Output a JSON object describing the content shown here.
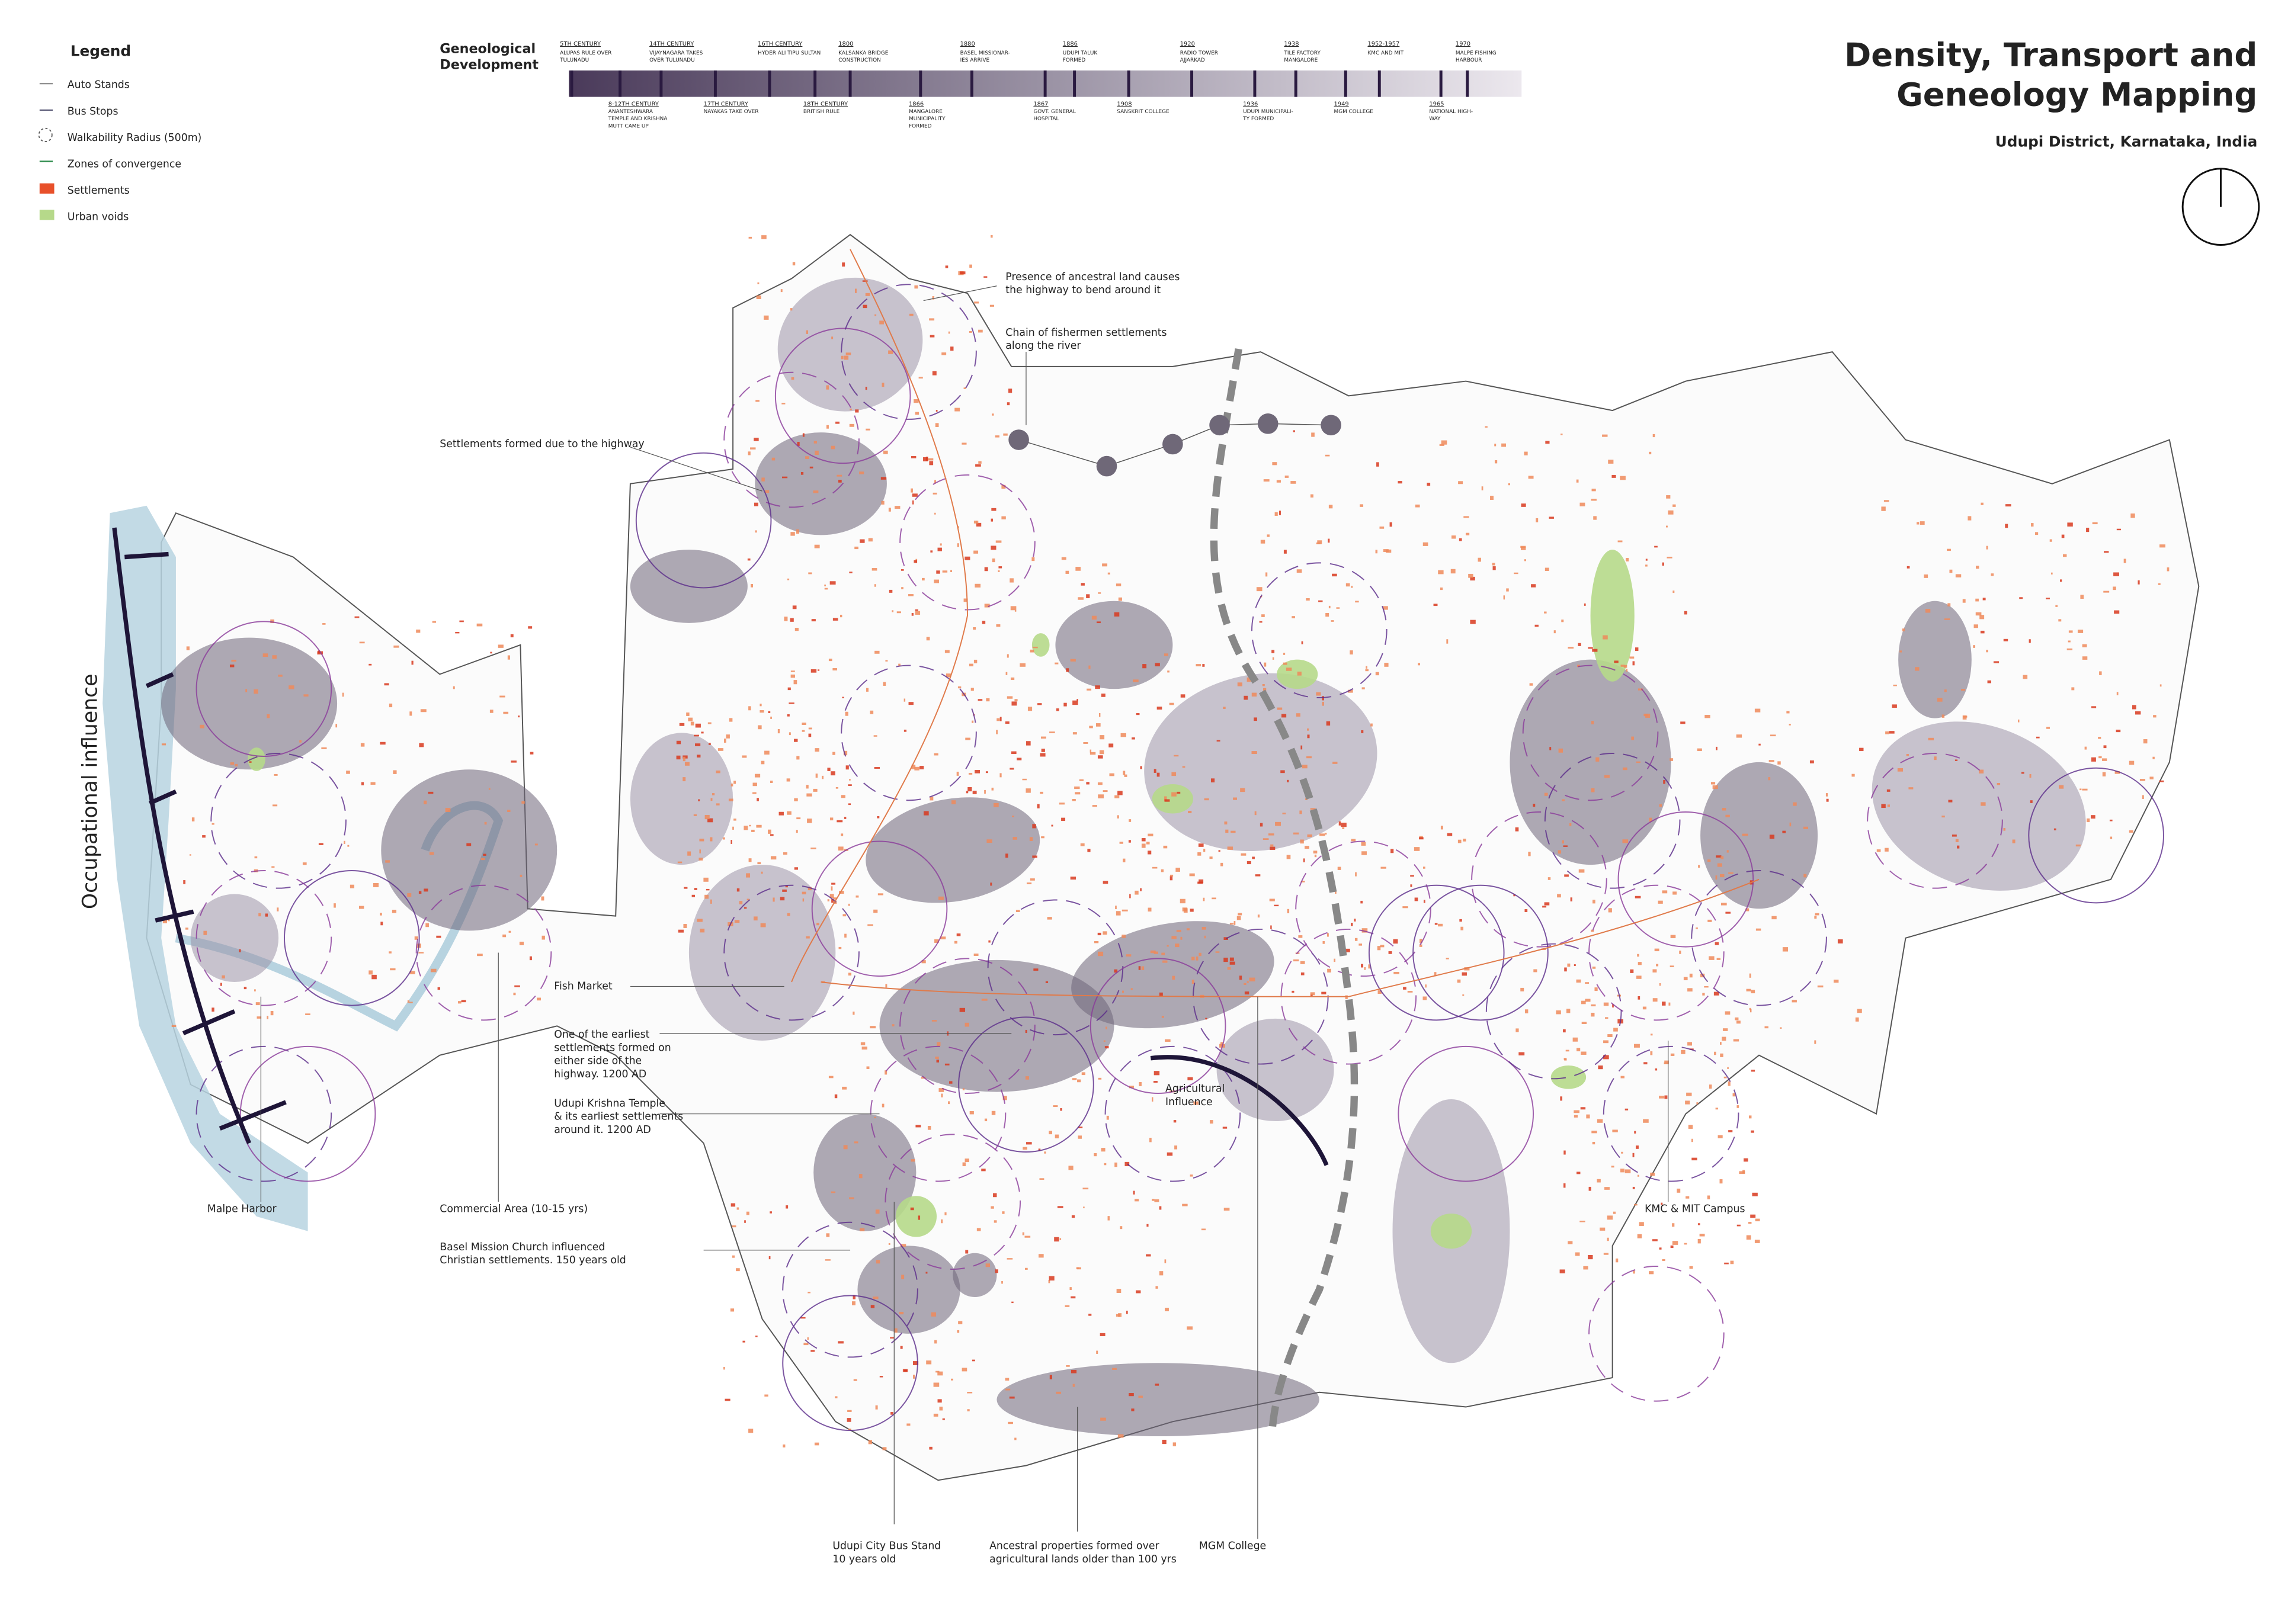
{
  "header": {
    "title": [
      "Density, Transport and",
      "Geneology Mapping"
    ],
    "subtitle": "Udupi District, Karnataka, India"
  },
  "legend": {
    "title": "Legend",
    "items": [
      "Auto Stands",
      "Bus Stops",
      "Walkability Radius (500m)",
      "Zones of convergence",
      "Settlements",
      "Urban voids"
    ]
  },
  "timeline": {
    "title": [
      "Geneological",
      "Development"
    ],
    "above": [
      {
        "year": "5TH CENTURY",
        "label": [
          "ALUPAS RULE OVER",
          "TULUNADU"
        ]
      },
      {
        "year": "14TH CENTURY",
        "label": [
          "VIJAYNAGARA TAKES",
          "OVER TULUNADU"
        ]
      },
      {
        "year": "16TH CENTURY",
        "label": [
          "HYDER ALI TIPU SULTAN"
        ]
      },
      {
        "year": "1800",
        "label": [
          "KALSANKA BRIDGE",
          "CONSTRUCTION"
        ]
      },
      {
        "year": "1880",
        "label": [
          "BASEL MISSIONAR-",
          "IES ARRIVE"
        ]
      },
      {
        "year": "1886",
        "label": [
          "UDUPI TALUK",
          "FORMED"
        ]
      },
      {
        "year": "1920",
        "label": [
          "RADIO TOWER",
          "AJJARKAD"
        ]
      },
      {
        "year": "1938",
        "label": [
          "TILE FACTORY",
          "MANGALORE"
        ]
      },
      {
        "year": "1952-1957",
        "label": [
          "KMC AND MIT"
        ]
      },
      {
        "year": "1970",
        "label": [
          "MALPE FISHING",
          "HARBOUR"
        ]
      }
    ],
    "below": [
      {
        "year": "8-12TH CENTURY",
        "label": [
          "ANANTESHWARA",
          "TEMPLE AND KRISHNA",
          "MUTT CAME UP"
        ]
      },
      {
        "year": "17TH CENTURY",
        "label": [
          "NAYAKAS TAKE OVER"
        ]
      },
      {
        "year": "18TH CENTURY",
        "label": [
          "BRITISH RULE"
        ]
      },
      {
        "year": "1866",
        "label": [
          "MANGALORE",
          "MUNICIPALITY",
          "FORMED"
        ]
      },
      {
        "year": "1867",
        "label": [
          "GOVT. GENERAL",
          "HOSPITAL"
        ]
      },
      {
        "year": "1908",
        "label": [
          "SANSKRIT COLLEGE"
        ]
      },
      {
        "year": "1936",
        "label": [
          "UDUPI MUNICIPALI-",
          "TY FORMED"
        ]
      },
      {
        "year": "1949",
        "label": [
          "MGM COLLEGE"
        ]
      },
      {
        "year": "1965",
        "label": [
          "NATIONAL HIGH-",
          "WAY"
        ]
      }
    ]
  },
  "annotations": [
    {
      "lines": [
        "Presence of ancestral land causes",
        "the highway to bend around it"
      ]
    },
    {
      "lines": [
        "Chain of fishermen settlements",
        "along the river"
      ]
    },
    {
      "lines": [
        "Settlements formed due to the highway"
      ]
    },
    {
      "lines": [
        "Occupational influence"
      ]
    },
    {
      "lines": [
        "Fish Market"
      ]
    },
    {
      "lines": [
        "One of the earliest",
        "settlements formed on",
        "either side of the",
        "highway. 1200 AD"
      ]
    },
    {
      "lines": [
        "Udupi Krishna Temple",
        "& its earliest settlements",
        "around it. 1200 AD"
      ]
    },
    {
      "lines": [
        "Agricultural",
        "Influence"
      ]
    },
    {
      "lines": [
        "Malpe Harbor"
      ]
    },
    {
      "lines": [
        "Commercial Area (10-15 yrs)"
      ]
    },
    {
      "lines": [
        "Basel Mission Church influenced",
        "Christian settlements. 150 years old"
      ]
    },
    {
      "lines": [
        "KMC & MIT Campus"
      ]
    },
    {
      "lines": [
        "Udupi City Bus Stand",
        "10 years old"
      ]
    },
    {
      "lines": [
        "Ancestral properties formed over",
        "agricultural lands older than 100 yrs"
      ]
    },
    {
      "lines": [
        "MGM College"
      ]
    }
  ]
}
